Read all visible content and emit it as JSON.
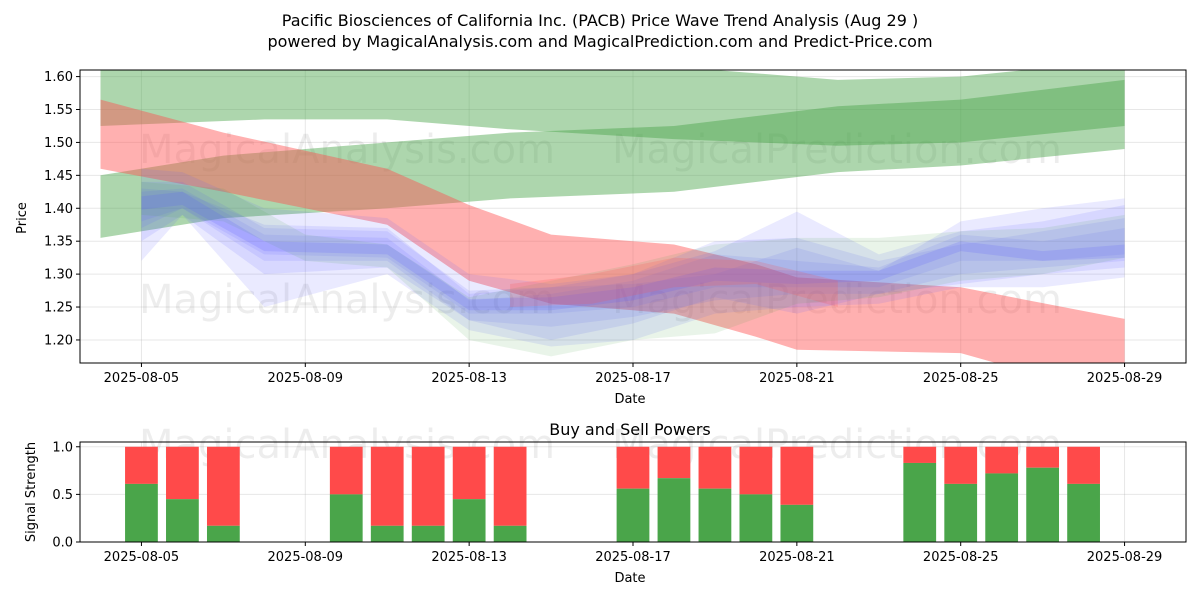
{
  "title_line1": "Pacific Biosciences of California Inc. (PACB) Price Wave Trend Analysis (Aug 29 )",
  "title_line2": "powered by MagicalAnalysis.com and MagicalPrediction.com and Predict-Price.com",
  "watermarks": [
    "MagicalAnalysis.com",
    "MagicalPrediction.com"
  ],
  "chart_data": [
    {
      "type": "area",
      "xlabel": "Date",
      "ylabel": "Price",
      "x_range": [
        "2025-08-03T12:00",
        "2025-08-30T12:00"
      ],
      "ylim": [
        1.165,
        1.61
      ],
      "x_ticks": [
        "2025-08-05",
        "2025-08-09",
        "2025-08-13",
        "2025-08-17",
        "2025-08-21",
        "2025-08-25",
        "2025-08-29"
      ],
      "y_ticks": [
        1.2,
        1.25,
        1.3,
        1.35,
        1.4,
        1.45,
        1.5,
        1.55,
        1.6
      ],
      "grid": true,
      "colors": {
        "green": "#4aa54a",
        "red": "#ff5050",
        "blue": "#5a5aff"
      },
      "bands": [
        {
          "color": "green",
          "opacity": 0.45,
          "x": [
            "2025-08-04",
            "2025-08-08",
            "2025-08-11",
            "2025-08-14",
            "2025-08-18",
            "2025-08-22",
            "2025-08-25",
            "2025-08-29"
          ],
          "upper": [
            1.63,
            1.625,
            1.63,
            1.62,
            1.615,
            1.595,
            1.6,
            1.625
          ],
          "lower": [
            1.525,
            1.535,
            1.535,
            1.52,
            1.505,
            1.495,
            1.5,
            1.525
          ]
        },
        {
          "color": "green",
          "opacity": 0.45,
          "x": [
            "2025-08-04",
            "2025-08-07",
            "2025-08-11",
            "2025-08-14",
            "2025-08-18",
            "2025-08-22",
            "2025-08-25",
            "2025-08-29"
          ],
          "upper": [
            1.45,
            1.48,
            1.5,
            1.515,
            1.525,
            1.555,
            1.565,
            1.595
          ],
          "lower": [
            1.355,
            1.385,
            1.4,
            1.415,
            1.425,
            1.455,
            1.465,
            1.49
          ]
        },
        {
          "color": "red",
          "opacity": 0.45,
          "x": [
            "2025-08-04",
            "2025-08-07",
            "2025-08-11",
            "2025-08-13",
            "2025-08-15",
            "2025-08-18",
            "2025-08-20",
            "2025-08-21",
            "2025-08-25",
            "2025-08-29"
          ],
          "upper": [
            1.565,
            1.515,
            1.46,
            1.405,
            1.36,
            1.345,
            1.315,
            1.295,
            1.28,
            1.232
          ],
          "lower": [
            1.46,
            1.425,
            1.375,
            1.29,
            1.255,
            1.24,
            1.205,
            1.185,
            1.18,
            1.11
          ]
        },
        {
          "color": "blue",
          "opacity": 0.13,
          "x": [
            "2025-08-05",
            "2025-08-06",
            "2025-08-08",
            "2025-08-11",
            "2025-08-13",
            "2025-08-15",
            "2025-08-17",
            "2025-08-19",
            "2025-08-21",
            "2025-08-23",
            "2025-08-25",
            "2025-08-27",
            "2025-08-29"
          ],
          "upper": [
            1.46,
            1.455,
            1.4,
            1.385,
            1.3,
            1.285,
            1.3,
            1.335,
            1.395,
            1.33,
            1.365,
            1.38,
            1.405
          ],
          "lower": [
            1.35,
            1.39,
            1.3,
            1.31,
            1.23,
            1.2,
            1.225,
            1.265,
            1.24,
            1.27,
            1.285,
            1.3,
            1.31
          ]
        },
        {
          "color": "blue",
          "opacity": 0.13,
          "x": [
            "2025-08-05",
            "2025-08-06",
            "2025-08-08",
            "2025-08-11",
            "2025-08-13",
            "2025-08-15",
            "2025-08-17",
            "2025-08-19",
            "2025-08-21",
            "2025-08-23",
            "2025-08-25",
            "2025-08-27",
            "2025-08-29"
          ],
          "upper": [
            1.44,
            1.44,
            1.37,
            1.365,
            1.275,
            1.28,
            1.285,
            1.3,
            1.34,
            1.305,
            1.38,
            1.4,
            1.415
          ],
          "lower": [
            1.32,
            1.39,
            1.25,
            1.3,
            1.215,
            1.19,
            1.2,
            1.24,
            1.25,
            1.255,
            1.28,
            1.28,
            1.295
          ]
        },
        {
          "color": "blue",
          "opacity": 0.13,
          "x": [
            "2025-08-05",
            "2025-08-06",
            "2025-08-08",
            "2025-08-11",
            "2025-08-13",
            "2025-08-15",
            "2025-08-17",
            "2025-08-19",
            "2025-08-21",
            "2025-08-23",
            "2025-08-25",
            "2025-08-27",
            "2025-08-29"
          ],
          "upper": [
            1.43,
            1.425,
            1.375,
            1.37,
            1.27,
            1.28,
            1.3,
            1.35,
            1.355,
            1.32,
            1.345,
            1.365,
            1.385
          ],
          "lower": [
            1.37,
            1.4,
            1.32,
            1.32,
            1.23,
            1.22,
            1.235,
            1.26,
            1.27,
            1.27,
            1.3,
            1.31,
            1.32
          ]
        },
        {
          "color": "blue",
          "opacity": 0.13,
          "x": [
            "2025-08-05",
            "2025-08-06",
            "2025-08-08",
            "2025-08-11",
            "2025-08-13",
            "2025-08-15",
            "2025-08-17",
            "2025-08-19",
            "2025-08-21",
            "2025-08-23",
            "2025-08-25",
            "2025-08-27",
            "2025-08-29"
          ],
          "upper": [
            1.425,
            1.43,
            1.36,
            1.355,
            1.26,
            1.27,
            1.29,
            1.33,
            1.32,
            1.31,
            1.36,
            1.35,
            1.37
          ],
          "lower": [
            1.38,
            1.4,
            1.33,
            1.325,
            1.24,
            1.24,
            1.25,
            1.28,
            1.28,
            1.28,
            1.32,
            1.32,
            1.33
          ]
        },
        {
          "color": "green",
          "opacity": 0.12,
          "x": [
            "2025-08-05",
            "2025-08-07",
            "2025-08-09",
            "2025-08-11",
            "2025-08-13",
            "2025-08-15",
            "2025-08-17",
            "2025-08-19",
            "2025-08-21",
            "2025-08-23",
            "2025-08-25",
            "2025-08-27",
            "2025-08-29"
          ],
          "upper": [
            1.44,
            1.43,
            1.36,
            1.345,
            1.265,
            1.29,
            1.315,
            1.345,
            1.355,
            1.355,
            1.365,
            1.37,
            1.39
          ],
          "lower": [
            1.39,
            1.38,
            1.32,
            1.31,
            1.2,
            1.175,
            1.2,
            1.21,
            1.255,
            1.265,
            1.29,
            1.3,
            1.325
          ]
        },
        {
          "color": "blue",
          "opacity": 0.18,
          "x": [
            "2025-08-05",
            "2025-08-06",
            "2025-08-08",
            "2025-08-11",
            "2025-08-13",
            "2025-08-15",
            "2025-08-17",
            "2025-08-19",
            "2025-08-21",
            "2025-08-23",
            "2025-08-25",
            "2025-08-27",
            "2025-08-29"
          ],
          "upper": [
            1.418,
            1.425,
            1.35,
            1.345,
            1.262,
            1.265,
            1.28,
            1.31,
            1.305,
            1.305,
            1.35,
            1.335,
            1.345
          ],
          "lower": [
            1.398,
            1.405,
            1.335,
            1.33,
            1.245,
            1.245,
            1.26,
            1.29,
            1.285,
            1.29,
            1.335,
            1.32,
            1.325
          ]
        },
        {
          "color": "red",
          "opacity": 0.2,
          "x": [
            "2025-08-14",
            "2025-08-16",
            "2025-08-18",
            "2025-08-20",
            "2025-08-22"
          ],
          "upper": [
            1.285,
            1.3,
            1.325,
            1.32,
            1.29
          ],
          "lower": [
            1.25,
            1.255,
            1.28,
            1.285,
            1.25
          ]
        }
      ]
    },
    {
      "type": "bar",
      "title": "Buy and Sell Powers",
      "xlabel": "Date",
      "ylabel": "Signal Strength",
      "x_range": [
        "2025-08-03T12:00",
        "2025-08-30T12:00"
      ],
      "ylim": [
        0,
        1.05
      ],
      "x_ticks": [
        "2025-08-05",
        "2025-08-09",
        "2025-08-13",
        "2025-08-17",
        "2025-08-21",
        "2025-08-25",
        "2025-08-29"
      ],
      "y_ticks": [
        0.0,
        0.5,
        1.0
      ],
      "grid": true,
      "colors": {
        "buy": "#4aa54a",
        "sell": "#ff4a4a"
      },
      "dates": [
        "2025-08-05",
        "2025-08-06",
        "2025-08-07",
        "2025-08-10",
        "2025-08-11",
        "2025-08-12",
        "2025-08-13",
        "2025-08-14",
        "2025-08-17",
        "2025-08-18",
        "2025-08-19",
        "2025-08-20",
        "2025-08-21",
        "2025-08-24",
        "2025-08-25",
        "2025-08-26",
        "2025-08-27",
        "2025-08-28"
      ],
      "buy": [
        0.61,
        0.45,
        0.17,
        0.5,
        0.17,
        0.17,
        0.45,
        0.17,
        0.56,
        0.67,
        0.56,
        0.5,
        0.39,
        0.83,
        0.61,
        0.72,
        0.78,
        0.61
      ],
      "total": 1.0
    }
  ]
}
